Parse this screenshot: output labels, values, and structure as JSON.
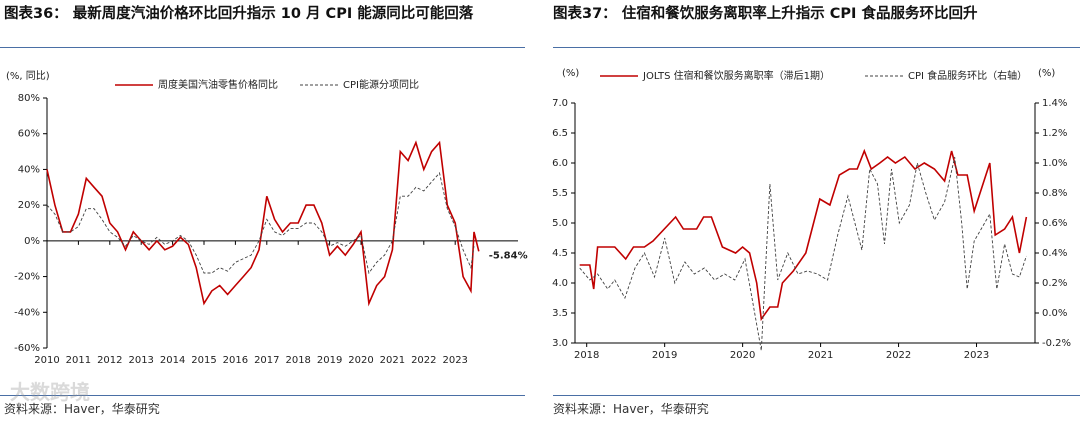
{
  "watermark": "大数跨境",
  "chart_data": [
    {
      "type": "line",
      "title": "图表36： 最新周度汽油价格环比回升指示 10 月 CPI 能源同比可能回落",
      "y_label": "(%, 同比)",
      "source": "资料来源：Haver，华泰研究",
      "annotation": "-5.84%",
      "xlim": [
        2010,
        2025
      ],
      "xticks": [
        2010,
        2011,
        2012,
        2013,
        2014,
        2015,
        2016,
        2017,
        2018,
        2019,
        2020,
        2021,
        2022,
        2023
      ],
      "ylim": [
        -60,
        80
      ],
      "yticks": [
        {
          "value": -60,
          "label": "-60%"
        },
        {
          "value": -40,
          "label": "-40%"
        },
        {
          "value": -20,
          "label": "-20%"
        },
        {
          "value": 0,
          "label": "0%"
        },
        {
          "value": 20,
          "label": "20%"
        },
        {
          "value": 40,
          "label": "40%"
        },
        {
          "value": 60,
          "label": "60%"
        },
        {
          "value": 80,
          "label": "80%"
        }
      ],
      "x": [
        2010.0,
        2010.25,
        2010.5,
        2010.75,
        2011.0,
        2011.25,
        2011.5,
        2011.75,
        2012.0,
        2012.25,
        2012.5,
        2012.75,
        2013.0,
        2013.25,
        2013.5,
        2013.75,
        2014.0,
        2014.25,
        2014.5,
        2014.75,
        2015.0,
        2015.25,
        2015.5,
        2015.75,
        2016.0,
        2016.25,
        2016.5,
        2016.75,
        2017.0,
        2017.25,
        2017.5,
        2017.75,
        2018.0,
        2018.25,
        2018.5,
        2018.75,
        2019.0,
        2019.25,
        2019.5,
        2019.75,
        2020.0,
        2020.25,
        2020.5,
        2020.75,
        2021.0,
        2021.25,
        2021.5,
        2021.75,
        2022.0,
        2022.25,
        2022.5,
        2022.75,
        2023.0,
        2023.25,
        2023.5,
        2023.6,
        2023.75
      ],
      "series": [
        {
          "name": "周度美国汽油零售价格同比",
          "color": "#c00000",
          "style": "solid",
          "values": [
            40,
            20,
            5,
            5,
            15,
            35,
            30,
            25,
            10,
            5,
            -5,
            5,
            0,
            -5,
            0,
            -5,
            -3,
            2,
            -2,
            -15,
            -35,
            -28,
            -25,
            -30,
            -25,
            -20,
            -15,
            -5,
            25,
            12,
            5,
            10,
            10,
            20,
            20,
            10,
            -8,
            -3,
            -8,
            -2,
            5,
            -35,
            -25,
            -20,
            -5,
            50,
            45,
            55,
            40,
            50,
            55,
            20,
            10,
            -20,
            -28,
            5,
            -5.84
          ]
        },
        {
          "name": "CPI能源分项同比",
          "color": "#404040",
          "style": "dashed",
          "values": [
            20,
            15,
            5,
            5,
            8,
            18,
            18,
            12,
            5,
            2,
            -3,
            3,
            0,
            -2,
            2,
            -2,
            0,
            3,
            0,
            -8,
            -18,
            -18,
            -15,
            -17,
            -12,
            -10,
            -8,
            0,
            12,
            5,
            3,
            7,
            7,
            10,
            10,
            5,
            -3,
            -1,
            -3,
            0,
            3,
            -18,
            -12,
            -8,
            0,
            25,
            25,
            30,
            28,
            33,
            38,
            18,
            8,
            -5,
            -15,
            -3,
            null
          ]
        }
      ]
    },
    {
      "type": "line",
      "title": "图表37： 住宿和餐饮服务离职率上升指示 CPI 食品服务环比回升",
      "y_label": "(%)",
      "y2_label": "(%)",
      "source": "资料来源：Haver，华泰研究",
      "xlim": [
        2017.85,
        2023.75
      ],
      "xticks": [
        2018,
        2019,
        2020,
        2021,
        2022,
        2023
      ],
      "ylim": [
        3,
        7
      ],
      "yticks": [
        {
          "value": 3,
          "label": "3.0"
        },
        3.5,
        {
          "value": 4,
          "label": "4.0"
        },
        4.5,
        {
          "value": 5,
          "label": "5.0"
        },
        5.5,
        {
          "value": 6,
          "label": "6.0"
        },
        6.5,
        {
          "value": 7,
          "label": "7.0"
        }
      ],
      "y2lim": [
        -0.2,
        1.4
      ],
      "y2ticks": [
        {
          "value": -0.2,
          "label": "-0.2%"
        },
        {
          "value": 0,
          "label": "0.0%"
        },
        {
          "value": 0.2,
          "label": "0.2%"
        },
        {
          "value": 0.4,
          "label": "0.4%"
        },
        {
          "value": 0.6,
          "label": "0.6%"
        },
        {
          "value": 0.8,
          "label": "0.8%"
        },
        {
          "value": 1.0,
          "label": "1.0%"
        },
        {
          "value": 1.2,
          "label": "1.2%"
        },
        {
          "value": 1.4,
          "label": "1.4%"
        }
      ],
      "series": [
        {
          "name": "JOLTS 住宿和餐饮服务离职率（滞后1期）",
          "color": "#c00000",
          "style": "solid",
          "x": [
            2017.91,
            2018.04,
            2018.09,
            2018.14,
            2018.36,
            2018.5,
            2018.6,
            2018.74,
            2018.85,
            2019.14,
            2019.24,
            2019.41,
            2019.5,
            2019.6,
            2019.74,
            2019.91,
            2020.0,
            2020.09,
            2020.18,
            2020.24,
            2020.35,
            2020.45,
            2020.51,
            2020.65,
            2020.81,
            2020.99,
            2021.12,
            2021.24,
            2021.37,
            2021.47,
            2021.56,
            2021.65,
            2021.76,
            2021.86,
            2021.96,
            2022.08,
            2022.21,
            2022.33,
            2022.46,
            2022.59,
            2022.68,
            2022.76,
            2022.88,
            2022.97,
            2023.17,
            2023.24,
            2023.36,
            2023.46,
            2023.55,
            2023.64
          ],
          "values": [
            4.3,
            4.3,
            3.9,
            4.6,
            4.6,
            4.4,
            4.6,
            4.6,
            4.7,
            5.1,
            4.9,
            4.9,
            5.1,
            5.1,
            4.6,
            4.5,
            4.6,
            4.5,
            4.0,
            3.4,
            3.6,
            3.6,
            4.0,
            4.2,
            4.5,
            5.4,
            5.3,
            5.8,
            5.9,
            5.9,
            6.2,
            5.9,
            6.0,
            6.1,
            6.0,
            6.1,
            5.9,
            6.0,
            5.9,
            5.7,
            6.2,
            5.8,
            5.8,
            5.2,
            6.0,
            4.8,
            4.9,
            5.1,
            4.5,
            5.1
          ]
        },
        {
          "name": "CPI 食品服务环比（右轴）",
          "color": "#404040",
          "style": "dashed",
          "axis": "y2",
          "x": [
            2017.91,
            2018.04,
            2018.14,
            2018.27,
            2018.36,
            2018.49,
            2018.62,
            2018.74,
            2018.87,
            2019.0,
            2019.13,
            2019.26,
            2019.38,
            2019.51,
            2019.64,
            2019.77,
            2019.9,
            2020.03,
            2020.12,
            2020.24,
            2020.35,
            2020.45,
            2020.58,
            2020.71,
            2020.83,
            2020.96,
            2021.09,
            2021.22,
            2021.35,
            2021.44,
            2021.53,
            2021.63,
            2021.73,
            2021.82,
            2021.91,
            2022.01,
            2022.14,
            2022.24,
            2022.35,
            2022.46,
            2022.59,
            2022.72,
            2022.81,
            2022.88,
            2022.97,
            2023.06,
            2023.17,
            2023.26,
            2023.36,
            2023.46,
            2023.55,
            2023.64
          ],
          "values": [
            0.3,
            0.22,
            0.26,
            0.16,
            0.22,
            0.1,
            0.3,
            0.4,
            0.24,
            0.5,
            0.2,
            0.34,
            0.26,
            0.3,
            0.22,
            0.26,
            0.22,
            0.36,
            0.1,
            -0.25,
            0.86,
            0.22,
            0.4,
            0.26,
            0.28,
            0.26,
            0.22,
            0.52,
            0.78,
            0.6,
            0.42,
            0.96,
            0.86,
            0.46,
            0.96,
            0.6,
            0.72,
            1.0,
            0.8,
            0.62,
            0.74,
            1.04,
            0.6,
            0.16,
            0.48,
            0.56,
            0.66,
            0.16,
            0.46,
            0.26,
            0.24,
            0.38
          ]
        }
      ]
    }
  ]
}
